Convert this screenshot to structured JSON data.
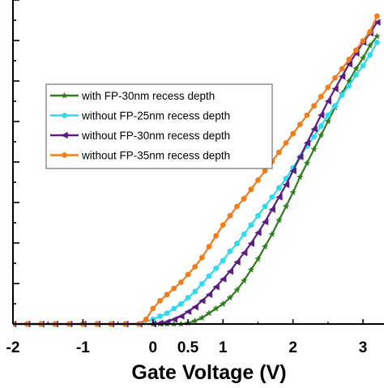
{
  "chart_data": {
    "type": "line",
    "title": "",
    "xlabel": "Gate Voltage (V)",
    "ylabel": "",
    "xlim": [
      -2,
      3.3
    ],
    "ylim": [
      0,
      10
    ],
    "x_ticks": [
      -2,
      -1,
      0,
      0.5,
      1,
      2,
      3
    ],
    "x_tick_labels": [
      "-2",
      "-1",
      "0",
      "0.5",
      "1",
      "2",
      "3"
    ],
    "y_tick_count": 16,
    "grid": false,
    "legend_position": "upper-left",
    "series": [
      {
        "name": "with FP-30nm recess depth",
        "color": "#2e7d1e",
        "marker": "star",
        "x": [
          -2.0,
          -1.8,
          -1.6,
          -1.4,
          -1.2,
          -1.0,
          -0.8,
          -0.6,
          -0.4,
          -0.2,
          0.0,
          0.1,
          0.2,
          0.3,
          0.4,
          0.5,
          0.6,
          0.7,
          0.8,
          0.9,
          1.0,
          1.1,
          1.2,
          1.3,
          1.4,
          1.5,
          1.6,
          1.7,
          1.8,
          1.9,
          2.0,
          2.1,
          2.2,
          2.3,
          2.4,
          2.5,
          2.6,
          2.7,
          2.8,
          2.9,
          3.0,
          3.1,
          3.2
        ],
        "y": [
          0,
          0,
          0,
          0,
          0,
          0,
          0,
          0,
          0,
          0,
          0,
          0,
          0,
          0,
          0,
          0.03,
          0.1,
          0.2,
          0.35,
          0.5,
          0.65,
          0.85,
          1.1,
          1.4,
          1.75,
          2.1,
          2.5,
          2.9,
          3.35,
          3.8,
          4.25,
          4.75,
          5.2,
          5.65,
          6.1,
          6.55,
          7.0,
          7.45,
          7.85,
          8.25,
          8.6,
          9.0,
          9.3
        ]
      },
      {
        "name": "without FP-25nm recess depth",
        "color": "#2fd9ee",
        "marker": "circle",
        "x": [
          -2.0,
          -1.8,
          -1.6,
          -1.4,
          -1.2,
          -1.0,
          -0.8,
          -0.6,
          -0.4,
          -0.2,
          0.0,
          0.1,
          0.2,
          0.3,
          0.4,
          0.5,
          0.6,
          0.7,
          0.8,
          0.9,
          1.0,
          1.1,
          1.2,
          1.3,
          1.4,
          1.5,
          1.6,
          1.7,
          1.8,
          1.9,
          2.0,
          2.1,
          2.2,
          2.3,
          2.4,
          2.5,
          2.6,
          2.7,
          2.8,
          2.9,
          3.0,
          3.1,
          3.2
        ],
        "y": [
          0,
          0,
          0,
          0,
          0,
          0,
          0,
          0,
          0,
          0,
          0.15,
          0.25,
          0.35,
          0.5,
          0.65,
          0.85,
          1.05,
          1.3,
          1.55,
          1.8,
          2.05,
          2.35,
          2.6,
          2.9,
          3.2,
          3.5,
          3.8,
          4.1,
          4.4,
          4.7,
          5.05,
          5.4,
          5.75,
          6.05,
          6.4,
          6.75,
          7.05,
          7.4,
          7.7,
          8.05,
          8.35,
          8.7,
          9.1
        ]
      },
      {
        "name": "without FP-30nm recess depth",
        "color": "#5a1d82",
        "marker": "triangle-left",
        "x": [
          -2.0,
          -1.8,
          -1.6,
          -1.4,
          -1.2,
          -1.0,
          -0.8,
          -0.6,
          -0.4,
          -0.2,
          0.0,
          0.1,
          0.2,
          0.3,
          0.4,
          0.5,
          0.6,
          0.7,
          0.8,
          0.9,
          1.0,
          1.1,
          1.2,
          1.3,
          1.4,
          1.5,
          1.6,
          1.7,
          1.8,
          1.9,
          2.0,
          2.1,
          2.2,
          2.3,
          2.4,
          2.5,
          2.6,
          2.7,
          2.8,
          2.9,
          3.0,
          3.1,
          3.2
        ],
        "y": [
          0,
          0,
          0,
          0,
          0,
          0,
          0,
          0,
          0,
          0,
          0,
          0.03,
          0.07,
          0.15,
          0.25,
          0.4,
          0.55,
          0.75,
          0.95,
          1.2,
          1.45,
          1.7,
          2.0,
          2.3,
          2.6,
          2.95,
          3.3,
          3.7,
          4.1,
          4.5,
          4.95,
          5.4,
          5.85,
          6.3,
          6.75,
          7.2,
          7.6,
          8.0,
          8.4,
          8.75,
          9.1,
          9.4,
          9.75
        ]
      },
      {
        "name": "without FP-35nm recess depth",
        "color": "#f07d1a",
        "marker": "circle",
        "x": [
          -2.0,
          -1.8,
          -1.6,
          -1.4,
          -1.2,
          -1.0,
          -0.8,
          -0.6,
          -0.4,
          -0.2,
          -0.1,
          0.0,
          0.1,
          0.2,
          0.3,
          0.4,
          0.5,
          0.6,
          0.7,
          0.8,
          0.9,
          1.0,
          1.1,
          1.2,
          1.3,
          1.4,
          1.5,
          1.6,
          1.7,
          1.8,
          1.9,
          2.0,
          2.1,
          2.2,
          2.3,
          2.4,
          2.5,
          2.6,
          2.7,
          2.8,
          2.9,
          3.0,
          3.1,
          3.2
        ],
        "y": [
          0,
          0,
          0,
          0,
          0,
          0,
          0,
          0,
          0,
          0,
          0.15,
          0.5,
          0.75,
          0.95,
          1.15,
          1.35,
          1.6,
          1.85,
          2.15,
          2.5,
          2.85,
          3.2,
          3.5,
          3.8,
          4.05,
          4.35,
          4.65,
          4.95,
          5.25,
          5.55,
          5.85,
          6.15,
          6.45,
          6.75,
          7.05,
          7.35,
          7.65,
          7.95,
          8.25,
          8.55,
          8.85,
          9.15,
          9.45,
          9.95
        ]
      }
    ]
  }
}
